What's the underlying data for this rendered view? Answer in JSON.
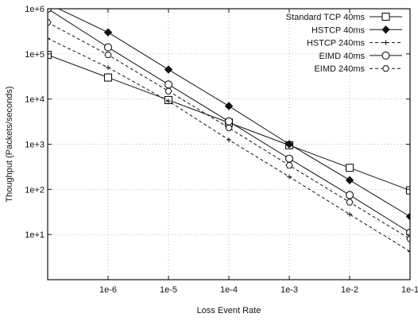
{
  "chart_data": {
    "type": "line",
    "xlabel": "Loss Event Rate",
    "ylabel": "Thoughput (Packets/seconds)",
    "xscale": "log",
    "yscale": "log",
    "xlim": [
      1e-07,
      0.1
    ],
    "ylim": [
      1,
      1000000
    ],
    "grid": true,
    "legend_position": "top-right",
    "x_tick_values": [
      1e-06,
      1e-05,
      0.0001,
      0.001,
      0.01,
      0.1
    ],
    "x_tick_labels": [
      "1e-6",
      "1e-5",
      "1e-4",
      "1e-3",
      "1e-2",
      "1e-1"
    ],
    "y_tick_values": [
      10,
      100,
      1000,
      10000,
      100000,
      1000000
    ],
    "y_tick_labels": [
      "1e+1",
      "1e+2",
      "1e+3",
      "1e+4",
      "1e+5",
      "1e+6"
    ],
    "series": [
      {
        "name": "Standard TCP 40ms",
        "style": "solid",
        "marker": "open-square",
        "x": [
          1e-07,
          1e-06,
          1e-05,
          0.0001,
          0.001,
          0.01,
          0.1
        ],
        "y": [
          95000,
          30000,
          9500,
          3000,
          950,
          300,
          95
        ]
      },
      {
        "name": "HSTCP 40ms",
        "style": "solid",
        "marker": "filled-diamond",
        "x": [
          1e-07,
          1e-06,
          1e-05,
          0.0001,
          0.001,
          0.01,
          0.1
        ],
        "y": [
          1300000,
          300000,
          45000,
          7000,
          1000,
          160,
          25
        ]
      },
      {
        "name": "HSTCP 240ms",
        "style": "dashed",
        "marker": "plus",
        "x": [
          1e-07,
          1e-06,
          1e-05,
          0.0001,
          0.001,
          0.01,
          0.1
        ],
        "y": [
          220000,
          50000,
          9000,
          1250,
          190,
          28,
          4.2
        ]
      },
      {
        "name": "EIMD 40ms",
        "style": "solid",
        "marker": "open-circle",
        "x": [
          1e-07,
          1e-06,
          1e-05,
          0.0001,
          0.001,
          0.01,
          0.1
        ],
        "y": [
          1000000,
          140000,
          21000,
          3200,
          480,
          75,
          11
        ]
      },
      {
        "name": "EIMD 240ms",
        "style": "dashed",
        "marker": "open-hexagon",
        "x": [
          1e-07,
          1e-06,
          1e-05,
          0.0001,
          0.001,
          0.01,
          0.1
        ],
        "y": [
          500000,
          95000,
          15000,
          2300,
          340,
          52,
          8
        ]
      }
    ]
  }
}
